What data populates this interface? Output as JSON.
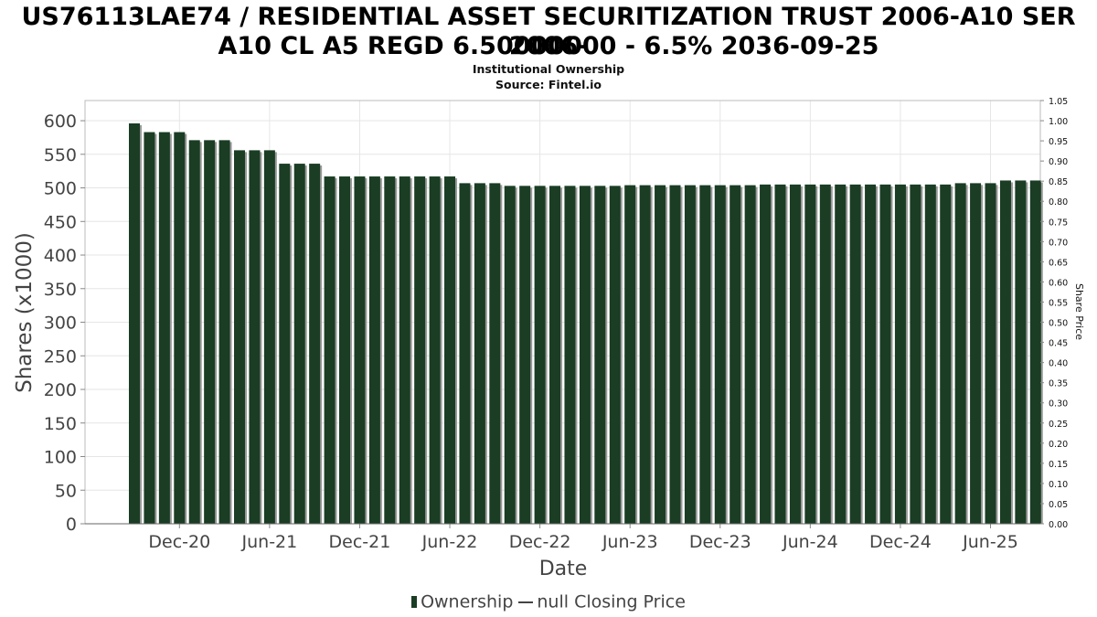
{
  "chart_data": {
    "type": "bar",
    "title_line1": "US76113LAE74 / RESIDENTIAL ASSET SECURITIZATION TRUST 2006-A10 SER 2006-",
    "title_line2": "A10 CL A5 REGD 6.50000000 - 6.5% 2036-09-25",
    "subtitle_line1": "Institutional Ownership",
    "subtitle_line2": "Source: Fintel.io",
    "xlabel": "Date",
    "ylabel": "Shares (x1000)",
    "y2label": "Share Price",
    "ylim": [
      0,
      630
    ],
    "y_ticks": [
      "0",
      "50",
      "100",
      "150",
      "200",
      "250",
      "300",
      "350",
      "400",
      "450",
      "500",
      "550",
      "600"
    ],
    "y2lim": [
      0,
      1.05
    ],
    "y2_ticks": [
      "0.00",
      "0.05",
      "0.10",
      "0.15",
      "0.20",
      "0.25",
      "0.30",
      "0.35",
      "0.40",
      "0.45",
      "0.50",
      "0.55",
      "0.60",
      "0.65",
      "0.70",
      "0.75",
      "0.80",
      "0.85",
      "0.90",
      "0.95",
      "1.00",
      "1.05"
    ],
    "x_ticks": [
      {
        "label": "Dec-20",
        "index": 3
      },
      {
        "label": "Jun-21",
        "index": 9
      },
      {
        "label": "Dec-21",
        "index": 15
      },
      {
        "label": "Jun-22",
        "index": 21
      },
      {
        "label": "Dec-22",
        "index": 27
      },
      {
        "label": "Jun-23",
        "index": 33
      },
      {
        "label": "Dec-23",
        "index": 39
      },
      {
        "label": "Jun-24",
        "index": 45
      },
      {
        "label": "Dec-24",
        "index": 51
      },
      {
        "label": "Jun-25",
        "index": 57
      }
    ],
    "bar_color": "#1a3d24",
    "grid": true,
    "legend_position": "bottom",
    "series": [
      {
        "name": "Ownership",
        "values": [
          596,
          583,
          583,
          583,
          571,
          571,
          571,
          556,
          556,
          556,
          536,
          536,
          536,
          517,
          517,
          517,
          517,
          517,
          517,
          517,
          517,
          517,
          507,
          507,
          507,
          503,
          503,
          503,
          503,
          503,
          503,
          503,
          503,
          504,
          504,
          504,
          504,
          504,
          504,
          504,
          504,
          504,
          505,
          505,
          505,
          505,
          505,
          505,
          505,
          505,
          505,
          505,
          505,
          505,
          505,
          507,
          507,
          507,
          511,
          511,
          511
        ]
      },
      {
        "name": "null Closing Price",
        "values": []
      }
    ]
  }
}
